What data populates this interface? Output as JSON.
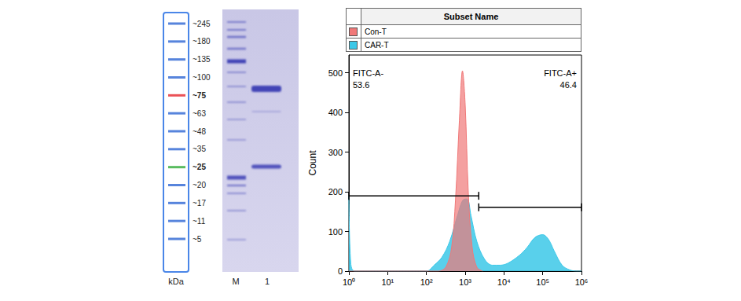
{
  "ladder": {
    "title": "kDa",
    "color": "#3a6fd6",
    "bands": [
      {
        "label": "~245"
      },
      {
        "label": "~180"
      },
      {
        "label": "~135"
      },
      {
        "label": "~100"
      },
      {
        "label": "~75",
        "color": "#e8343a"
      },
      {
        "label": "~63"
      },
      {
        "label": "~48"
      },
      {
        "label": "~35"
      },
      {
        "label": "~25",
        "color": "#3cb043"
      },
      {
        "label": "~20"
      },
      {
        "label": "~17"
      },
      {
        "label": "~11"
      },
      {
        "label": "~5"
      }
    ]
  },
  "gel": {
    "lanes": [
      "M",
      "1"
    ]
  },
  "chart_data": {
    "type": "area",
    "ylabel": "Count",
    "log": "x",
    "grid": false,
    "legend": "top",
    "legend_title": "Subset Name",
    "xlim": [
      1,
      1000000
    ],
    "xticks": [
      {
        "value": 1,
        "label": "10⁰"
      },
      {
        "value": 10,
        "label": "10¹"
      },
      {
        "value": 100,
        "label": "10²"
      },
      {
        "value": 1000,
        "label": "10³"
      },
      {
        "value": 10000,
        "label": "10⁴"
      },
      {
        "value": 100000,
        "label": "10⁵"
      },
      {
        "value": 1000000,
        "label": "10⁶"
      }
    ],
    "ylim": [
      0,
      545
    ],
    "yticks": [
      0,
      100,
      200,
      300,
      400,
      500
    ],
    "series": [
      {
        "name": "Con-T",
        "color": "#f07878",
        "x": [
          1,
          100,
          200,
          316,
          447,
          562,
          708,
          851,
          1000,
          1202,
          1514,
          1995,
          2818
        ],
        "values": [
          0,
          0,
          0,
          10,
          60,
          180,
          380,
          505,
          420,
          200,
          60,
          10,
          0
        ]
      },
      {
        "name": "CAR-T",
        "color": "#3cc8e8",
        "x": [
          1,
          1.12,
          1.41,
          100,
          158,
          251,
          398,
          631,
          891,
          1122,
          1413,
          1995,
          3162,
          5012,
          7943,
          12589,
          25119,
          39811,
          63096,
          100000,
          141254,
          199526,
          316228,
          501187,
          794328,
          1000000
        ],
        "values": [
          190,
          20,
          0,
          0,
          15,
          35,
          75,
          140,
          180,
          182,
          140,
          75,
          30,
          15,
          15,
          20,
          40,
          60,
          85,
          92,
          80,
          50,
          15,
          3,
          0,
          0
        ]
      }
    ],
    "gates": [
      {
        "name": "FITC-A-",
        "value": 53.6,
        "x": [
          1,
          2239
        ],
        "y": 190
      },
      {
        "name": "FITC-A+",
        "value": 46.4,
        "x": [
          2239,
          1000000
        ],
        "y": 161
      }
    ]
  }
}
